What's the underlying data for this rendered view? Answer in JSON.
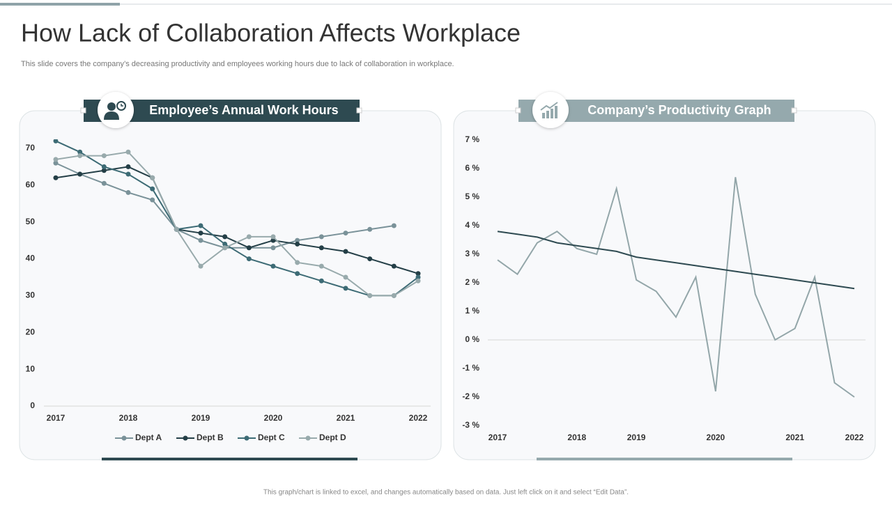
{
  "title": "How Lack of Collaboration Affects Workplace",
  "subtitle": "This slide covers the company’s decreasing productivity and employees working hours due to lack of collaboration in workplace.",
  "footer": "This graph/chart is linked to excel, and changes automatically based on data. Just left click on it and select “Edit Data”.",
  "chart_data": [
    {
      "type": "line",
      "title": "Employee’s Annual Work Hours",
      "categories": [
        "2017",
        null,
        null,
        "2018",
        null,
        null,
        "2019",
        null,
        null,
        "2020",
        null,
        null,
        "2021",
        null,
        null,
        "2022"
      ],
      "series": [
        {
          "name": "Dept A",
          "color": "#7a9299",
          "values": [
            66,
            63,
            60.5,
            58,
            56,
            48,
            45,
            43,
            43,
            43,
            45,
            46,
            47,
            48,
            49,
            null
          ]
        },
        {
          "name": "Dept B",
          "color": "#243f47",
          "values": [
            62,
            63,
            64,
            65,
            62,
            48,
            47,
            46,
            43,
            45,
            44,
            43,
            42,
            40,
            38,
            36
          ]
        },
        {
          "name": "Dept C",
          "color": "#3d6b75",
          "values": [
            72,
            69,
            65,
            63,
            59,
            48,
            49,
            44,
            40,
            38,
            36,
            34,
            32,
            30,
            30,
            35
          ]
        },
        {
          "name": "Dept D",
          "color": "#98aaac",
          "values": [
            67,
            68,
            68,
            69,
            62,
            48,
            38,
            43,
            46,
            46,
            39,
            38,
            35,
            30,
            30,
            34
          ]
        }
      ],
      "ylim": [
        0,
        70
      ],
      "yticks": [
        0,
        10,
        20,
        30,
        40,
        50,
        60,
        70
      ],
      "grid": false,
      "markers": true,
      "legend": "bottom"
    },
    {
      "type": "line",
      "title": "Company’s Productivity Graph",
      "categories": [
        "2017",
        null,
        null,
        null,
        "2018",
        null,
        null,
        "2019",
        null,
        null,
        null,
        "2020",
        null,
        null,
        null,
        "2021",
        null,
        null,
        "2022"
      ],
      "series": [
        {
          "color": "#93a6a9",
          "values": [
            2.8,
            2.3,
            3.4,
            3.8,
            3.2,
            3.0,
            5.3,
            2.1,
            1.7,
            0.8,
            2.2,
            -1.8,
            5.7,
            1.6,
            0.0,
            0.4,
            2.2,
            -1.5,
            -2.0
          ]
        },
        {
          "color": "#2e4a51",
          "values": [
            3.8,
            3.7,
            3.6,
            3.4,
            3.3,
            3.2,
            3.1,
            2.9,
            2.8,
            2.7,
            2.6,
            2.5,
            2.4,
            2.3,
            2.2,
            2.1,
            2.0,
            1.9,
            1.8
          ]
        }
      ],
      "ylim": [
        -3,
        7
      ],
      "yticks": [
        {
          "value": -3,
          "label": "-3 %"
        },
        {
          "value": -2,
          "label": "-2 %"
        },
        {
          "value": -1,
          "label": "-1 %"
        },
        {
          "value": 0,
          "label": "0 %"
        },
        {
          "value": 1,
          "label": "1 %"
        },
        {
          "value": 2,
          "label": "2 %"
        },
        {
          "value": 3,
          "label": "3 %"
        },
        {
          "value": 4,
          "label": "4 %"
        },
        {
          "value": 5,
          "label": "5 %"
        },
        {
          "value": 6,
          "label": "6 %"
        },
        {
          "value": 7,
          "label": "7 %"
        }
      ],
      "grid": false,
      "zero_line": true,
      "markers": false
    }
  ]
}
